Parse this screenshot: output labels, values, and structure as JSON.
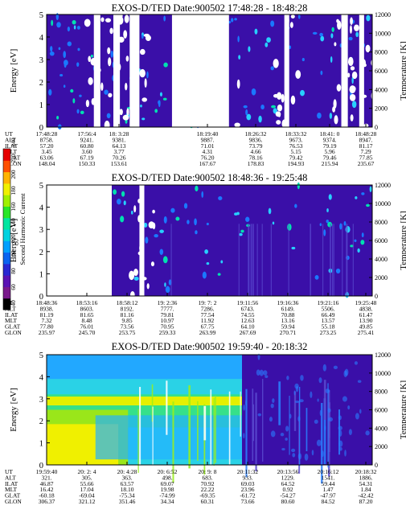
{
  "chart_data": [
    {
      "type": "heatmap",
      "title": "EXOS-D/TED   Date:900502   17:48:28 - 18:48:28",
      "ylabel": "Energy [eV]",
      "ylabel_right": "Temperature [K]",
      "y_ticks": [
        "0",
        "1",
        "2",
        "3",
        "4",
        "5"
      ],
      "y_right_ticks": [
        "0",
        "2000",
        "4000",
        "6000",
        "8000",
        "10000",
        "12000"
      ],
      "ylim": [
        0,
        5
      ],
      "ylim_right": [
        0,
        12000
      ],
      "background_color": "#3a0fa8",
      "gaps": [
        [
          0.145,
          0.165
        ],
        [
          0.205,
          0.225
        ],
        [
          0.255,
          0.285
        ],
        [
          0.385,
          0.56
        ],
        [
          0.73,
          0.745
        ],
        [
          0.905,
          0.925
        ],
        [
          0.96,
          0.975
        ]
      ],
      "ephemeris": {
        "labels": [
          "UT",
          "ALT",
          "ILAT",
          "MLT",
          "GLAT",
          "GLON"
        ],
        "columns": [
          [
            "17:48:28",
            "8758.",
            "57.20",
            "3.45",
            "63.06",
            "148.04"
          ],
          [
            "17:56:4",
            "9241.",
            "60.80",
            "3.60",
            "67.19",
            "150.33"
          ],
          [
            "18: 3:28",
            "9381.",
            "64.13",
            "3.77",
            "70.26",
            "153.61"
          ],
          [
            "18:19:40",
            "9887.",
            "71.01",
            "4.31",
            "76.20",
            "167.67"
          ],
          [
            "18:26:32",
            "9836.",
            "73.79",
            "4.66",
            "78.16",
            "178.83"
          ],
          [
            "18:33:32",
            "9673.",
            "76.53",
            "5.15",
            "79.42",
            "194.93"
          ],
          [
            "18:41: 0",
            "9374.",
            "79.19",
            "5.96",
            "79.46",
            "215.94"
          ],
          [
            "18:48:28",
            "8947.",
            "81.17",
            "7.29",
            "77.85",
            "235.67"
          ]
        ]
      }
    },
    {
      "type": "heatmap",
      "title": "EXOS-D/TED   Date:900502   18:48:36 - 19:25:48",
      "ylabel": "Energy [eV]",
      "ylabel_right": "Temperature [K]",
      "y_ticks": [
        "0",
        "1",
        "2",
        "3",
        "4",
        "5"
      ],
      "y_right_ticks": [
        "0",
        "2000",
        "4000",
        "6000",
        "8000",
        "10000",
        "12000"
      ],
      "ylim": [
        0,
        5
      ],
      "ylim_right": [
        0,
        12000
      ],
      "background_color": "#3a0fa8",
      "gaps": [
        [
          0.0,
          0.2
        ],
        [
          0.285,
          0.3
        ]
      ],
      "colorbar": {
        "label": "Second Harmonic Current",
        "ticks": [
          "40",
          "60",
          "80",
          "100",
          "120",
          "140",
          "160",
          "180",
          "200",
          "220",
          "240"
        ],
        "colors": [
          "#000000",
          "#7a1a8c",
          "#5a13b4",
          "#2828d2",
          "#0a64f0",
          "#00a0ff",
          "#00d2e0",
          "#00e6a0",
          "#28e628",
          "#a0f000",
          "#f0f000",
          "#ffb400",
          "#ff5000",
          "#e60000"
        ]
      },
      "ephemeris": {
        "labels": [
          "UT",
          "ALT",
          "ILAT",
          "MLT",
          "GLAT",
          "GLON"
        ],
        "columns": [
          [
            "18:48:36",
            "8938.",
            "81.19",
            "7.32",
            "77.80",
            "235.97"
          ],
          [
            "18:53:16",
            "8603.",
            "81.65",
            "8.48",
            "76.01",
            "245.70"
          ],
          [
            "18:58:12",
            "8192.",
            "81.16",
            "9.85",
            "73.56",
            "253.75"
          ],
          [
            "19: 2:36",
            "7777.",
            "79.81",
            "10.97",
            "70.95",
            "259.33"
          ],
          [
            "19: 7: 2",
            "7286.",
            "77.54",
            "11.92",
            "67.75",
            "263.99"
          ],
          [
            "19:11:56",
            "6743.",
            "74.55",
            "12.63",
            "64.10",
            "267.69"
          ],
          [
            "19:16:36",
            "6149.",
            "70.88",
            "13.16",
            "59.94",
            "270.71"
          ],
          [
            "19:21:16",
            "5506.",
            "66.49",
            "13.57",
            "55.18",
            "273.25"
          ],
          [
            "19:25:48",
            "4838.",
            "61.47",
            "13.90",
            "49.85",
            "275.41"
          ]
        ]
      }
    },
    {
      "type": "heatmap",
      "title": "EXOS-D/TED   Date:900502   19:59:40 - 20:18:32",
      "ylabel": "Energy [eV]",
      "ylabel_right": "Temperature [K]",
      "y_ticks": [
        "0",
        "1",
        "2",
        "3",
        "4",
        "5"
      ],
      "y_right_ticks": [
        "0",
        "2000",
        "4000",
        "6000",
        "8000",
        "10000",
        "12000"
      ],
      "ylim": [
        0,
        5
      ],
      "ylim_right": [
        0,
        12000
      ],
      "background_color": "#3a0fa8",
      "gaps": [],
      "ephemeris": {
        "labels": [
          "UT",
          "ALT",
          "ILAT",
          "MLT",
          "GLAT",
          "GLON"
        ],
        "columns": [
          [
            "19:59:40",
            "321.",
            "46.87",
            "16.42",
            "-60.18",
            "306.37"
          ],
          [
            "20: 2: 4",
            "305.",
            "55.66",
            "17.04",
            "-69.04",
            "321.12"
          ],
          [
            "20: 4:28",
            "363.",
            "63.57",
            "18.10",
            "-75.34",
            "351.46"
          ],
          [
            "20: 6:52",
            "498.",
            "69.07",
            "19.98",
            "-74.99",
            "34.34"
          ],
          [
            "20: 9: 8",
            "683.",
            "70.92",
            "22.22",
            "-69.35",
            "60.31"
          ],
          [
            "20:11:32",
            "933.",
            "69.03",
            "23.96",
            "-61.72",
            "73.66"
          ],
          [
            "20:13:56",
            "1229.",
            "64.52",
            "0.92",
            "-54.27",
            "80.60"
          ],
          [
            "20:16:12",
            "1541.",
            "59.44",
            "1.47",
            "-47.97",
            "84.52"
          ],
          [
            "20:18:32",
            "1886.",
            "54.31",
            "1.84",
            "-42.42",
            "87.20"
          ]
        ]
      }
    }
  ]
}
